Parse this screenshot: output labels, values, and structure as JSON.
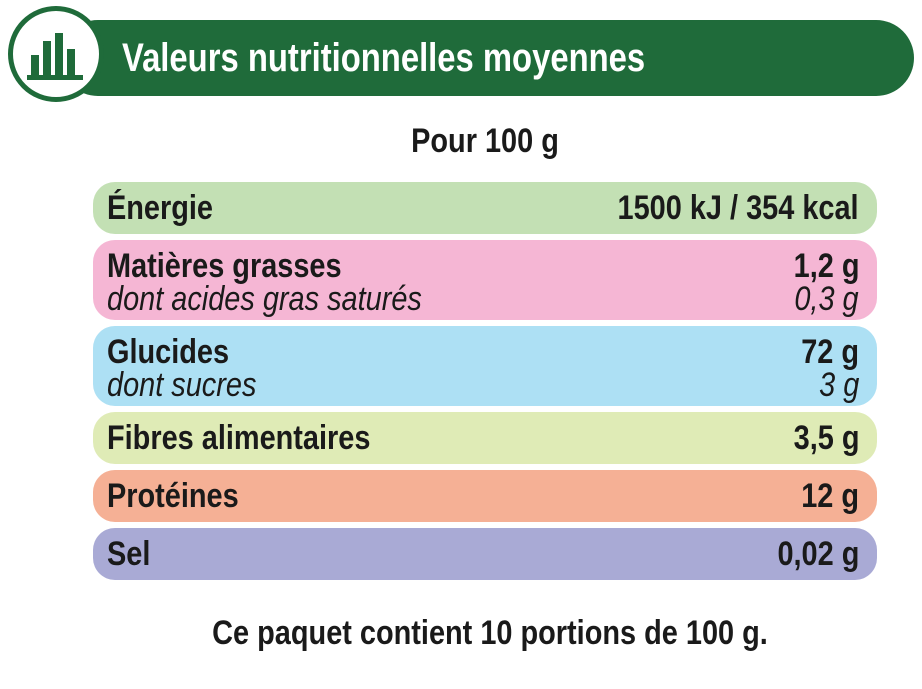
{
  "header": {
    "title": "Valeurs nutritionnelles moyennes"
  },
  "subtitle": "Pour 100 g",
  "rows": [
    {
      "lines": [
        {
          "label": "Énergie",
          "value": "1500 kJ / 354 kcal"
        }
      ],
      "color": "#c3e0b4"
    },
    {
      "lines": [
        {
          "label": "Matières grasses",
          "value": "1,2 g"
        },
        {
          "label": "dont acides gras saturés",
          "value": "0,3 g",
          "italic": true
        }
      ],
      "color": "#f5b6d4"
    },
    {
      "lines": [
        {
          "label": "Glucides",
          "value": "72 g"
        },
        {
          "label": "dont sucres",
          "value": "3 g",
          "italic": true
        }
      ],
      "color": "#ade0f4"
    },
    {
      "lines": [
        {
          "label": "Fibres alimentaires",
          "value": "3,5 g"
        }
      ],
      "color": "#dfebb6"
    },
    {
      "lines": [
        {
          "label": "Protéines",
          "value": "12 g"
        }
      ],
      "color": "#f5b095"
    },
    {
      "lines": [
        {
          "label": "Sel",
          "value": "0,02 g"
        }
      ],
      "color": "#a9aad5"
    }
  ],
  "footer": "Ce paquet contient 10 portions de 100 g."
}
